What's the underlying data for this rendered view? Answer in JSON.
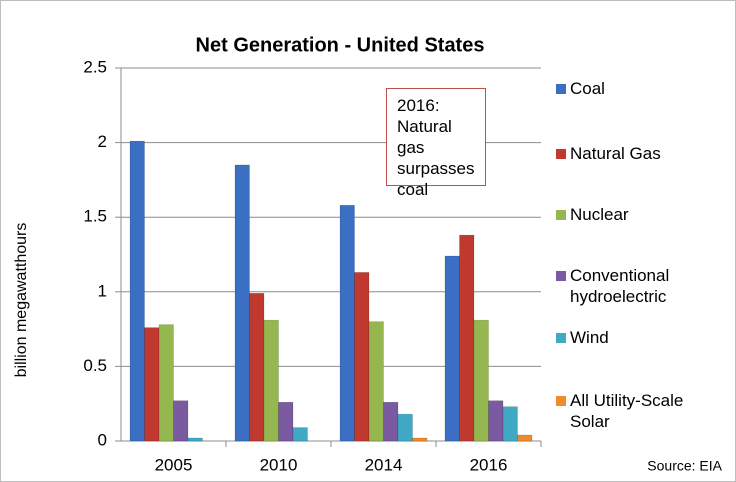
{
  "chart_data": {
    "type": "bar",
    "title": "Net Generation - United States",
    "y_label": "billion megawatthours",
    "categories": [
      "2005",
      "2010",
      "2014",
      "2016"
    ],
    "series": [
      {
        "name": "Coal",
        "color": "#3a6fc4",
        "values": [
          2.01,
          1.85,
          1.58,
          1.24
        ]
      },
      {
        "name": "Natural Gas",
        "color": "#c0392f",
        "values": [
          0.76,
          0.99,
          1.13,
          1.38
        ]
      },
      {
        "name": "Nuclear",
        "color": "#94b84f",
        "values": [
          0.78,
          0.81,
          0.8,
          0.81
        ]
      },
      {
        "name": "Conventional hydroelectric",
        "color": "#7a5aa0",
        "values": [
          0.27,
          0.26,
          0.26,
          0.27
        ]
      },
      {
        "name": "Wind",
        "color": "#3fa9c6",
        "values": [
          0.02,
          0.09,
          0.18,
          0.23
        ]
      },
      {
        "name": "All Utility-Scale Solar",
        "color": "#f08a2e",
        "values": [
          0,
          0,
          0.02,
          0.04
        ]
      }
    ],
    "ylim": [
      0,
      2.5
    ],
    "yticks": [
      0,
      0.5,
      1,
      1.5,
      2,
      2.5
    ],
    "grid": true,
    "annotation": "2016: Natural gas surpasses coal",
    "source": "Source: EIA"
  }
}
